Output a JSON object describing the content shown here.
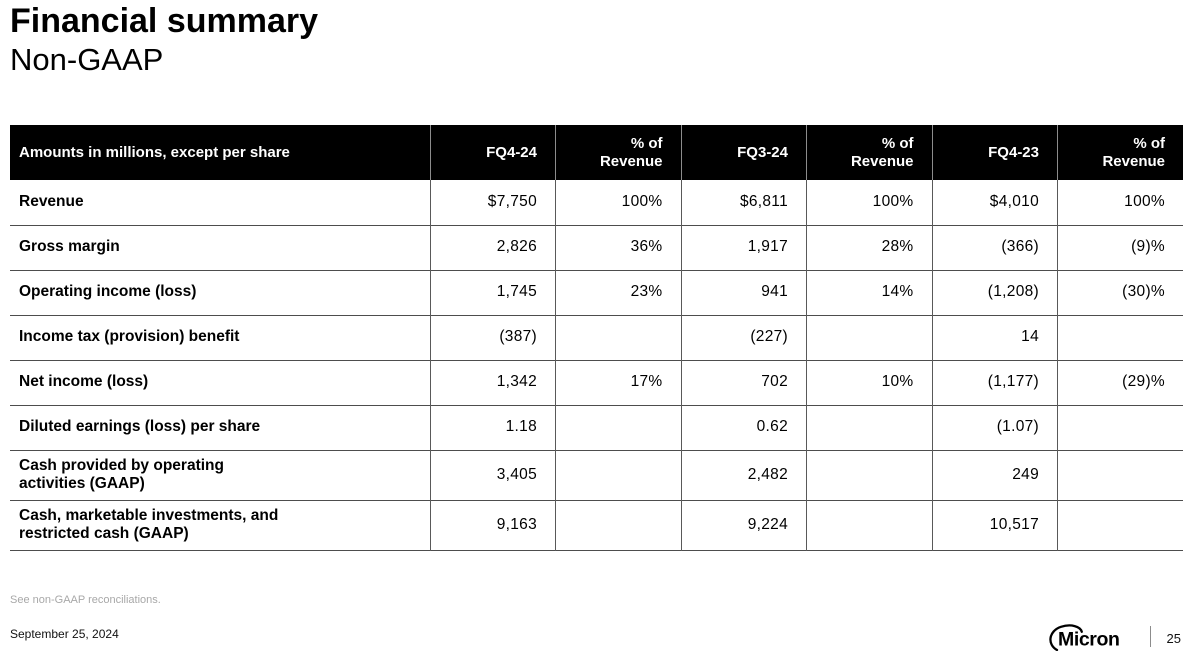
{
  "slide": {
    "title": "Financial summary",
    "subtitle": "Non-GAAP",
    "footnote": "See non-GAAP reconciliations.",
    "date": "September 25, 2024",
    "page_number": "25",
    "logo_text": "Micron"
  },
  "colors": {
    "header_bg": "#000000",
    "header_text": "#ffffff",
    "grid_vertical": "#595959",
    "grid_horizontal": "#4d4d4d",
    "footnote_text": "#a8a8a8"
  },
  "table": {
    "columns": [
      {
        "label": "Amounts in millions, except per share",
        "align": "left"
      },
      {
        "label": "FQ4-24",
        "align": "right"
      },
      {
        "label": "% of\nRevenue",
        "align": "right"
      },
      {
        "label": "FQ3-24",
        "align": "right"
      },
      {
        "label": "% of\nRevenue",
        "align": "right"
      },
      {
        "label": "FQ4-23",
        "align": "right"
      },
      {
        "label": "% of\nRevenue",
        "align": "right"
      }
    ],
    "rows": [
      {
        "label": "Revenue",
        "values": [
          "$7,750",
          "100%",
          "$6,811",
          "100%",
          "$4,010",
          "100%"
        ]
      },
      {
        "label": "Gross margin",
        "values": [
          "2,826",
          "36%",
          "1,917",
          "28%",
          "(366)",
          "(9)%"
        ]
      },
      {
        "label": "Operating income (loss)",
        "values": [
          "1,745",
          "23%",
          "941",
          "14%",
          "(1,208)",
          "(30)%"
        ]
      },
      {
        "label": "Income tax (provision) benefit",
        "values": [
          "(387)",
          "",
          "(227)",
          "",
          "14",
          ""
        ]
      },
      {
        "label": "Net income (loss)",
        "values": [
          "1,342",
          "17%",
          "702",
          "10%",
          "(1,177)",
          "(29)%"
        ]
      },
      {
        "label": "Diluted earnings (loss) per share",
        "values": [
          "1.18",
          "",
          "0.62",
          "",
          "(1.07)",
          ""
        ]
      },
      {
        "label": "Cash provided by operating\nactivities (GAAP)",
        "values": [
          "3,405",
          "",
          "2,482",
          "",
          "249",
          ""
        ]
      },
      {
        "label": "Cash, marketable investments, and\nrestricted cash (GAAP)",
        "values": [
          "9,163",
          "",
          "9,224",
          "",
          "10,517",
          ""
        ]
      }
    ]
  }
}
